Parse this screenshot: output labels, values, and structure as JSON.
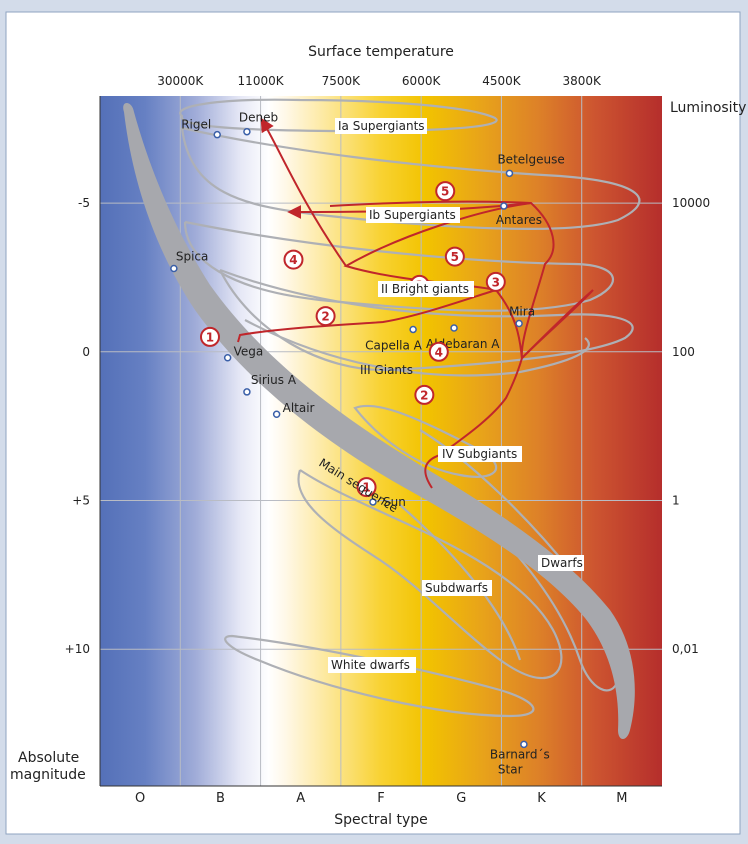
{
  "chart_data": {
    "type": "scatter",
    "title": "Surface temperature",
    "xlabel": "Spectral type",
    "ylabel_left": "Absolute\nmagnitude",
    "ylabel_right": "Luminosity",
    "spectral_types": [
      "O",
      "B",
      "A",
      "F",
      "G",
      "K",
      "M"
    ],
    "temperature_ticks": [
      "30000K",
      "11000K",
      "7500K",
      "6000K",
      "4500K",
      "3800K"
    ],
    "magnitude_ticks": [
      {
        "label": "-5",
        "value": -5
      },
      {
        "label": "0",
        "value": 0
      },
      {
        "label": "+5",
        "value": 5
      },
      {
        "label": "+10",
        "value": 10
      }
    ],
    "luminosity_ticks": [
      {
        "label": "10000",
        "value": -5
      },
      {
        "label": "100",
        "value": 0
      },
      {
        "label": "1",
        "value": 5
      },
      {
        "label": "0,01",
        "value": 10
      }
    ],
    "ylim": [
      -8.6,
      14.6
    ],
    "xlim": [
      0,
      7
    ],
    "regions": [
      "Ia Supergiants",
      "Ib Supergiants",
      "II Bright giants",
      "III Giants",
      "IV Subgiants",
      "Main sequence",
      "Dwarfs",
      "Subdwarfs",
      "White dwarfs"
    ],
    "stars": [
      {
        "name": "Rigel",
        "x": 1.46,
        "y": -7.3
      },
      {
        "name": "Deneb",
        "x": 1.83,
        "y": -7.4
      },
      {
        "name": "Betelgeuse",
        "x": 5.1,
        "y": -6.0
      },
      {
        "name": "Antares",
        "x": 5.03,
        "y": -4.9
      },
      {
        "name": "Spica",
        "x": 0.92,
        "y": -2.8
      },
      {
        "name": "Mira",
        "x": 5.22,
        "y": -0.95
      },
      {
        "name": "Capella A",
        "x": 3.9,
        "y": -0.75
      },
      {
        "name": "Aldebaran A",
        "x": 4.41,
        "y": -0.8
      },
      {
        "name": "Vega",
        "x": 1.59,
        "y": 0.2
      },
      {
        "name": "Sirius A",
        "x": 1.83,
        "y": 1.35
      },
      {
        "name": "Altair",
        "x": 2.2,
        "y": 2.1
      },
      {
        "name": "Sun",
        "x": 3.4,
        "y": 5.05
      },
      {
        "name": "Barnard´s Star",
        "x": 5.28,
        "y": 13.2
      }
    ],
    "evolution_markers": [
      {
        "label": "1",
        "x": 1.37,
        "y": -0.5
      },
      {
        "label": "2",
        "x": 2.81,
        "y": -1.2
      },
      {
        "label": "3",
        "x": 3.98,
        "y": -2.25
      },
      {
        "label": "4",
        "x": 2.41,
        "y": -3.1
      },
      {
        "label": "5",
        "x": 4.3,
        "y": -5.4
      },
      {
        "label": "1",
        "x": 3.32,
        "y": 4.55
      },
      {
        "label": "2",
        "x": 4.04,
        "y": 1.45
      },
      {
        "label": "3",
        "x": 4.93,
        "y": -2.35
      },
      {
        "label": "4",
        "x": 4.22,
        "y": 0.0
      },
      {
        "label": "5",
        "x": 4.42,
        "y": -3.2
      }
    ]
  }
}
